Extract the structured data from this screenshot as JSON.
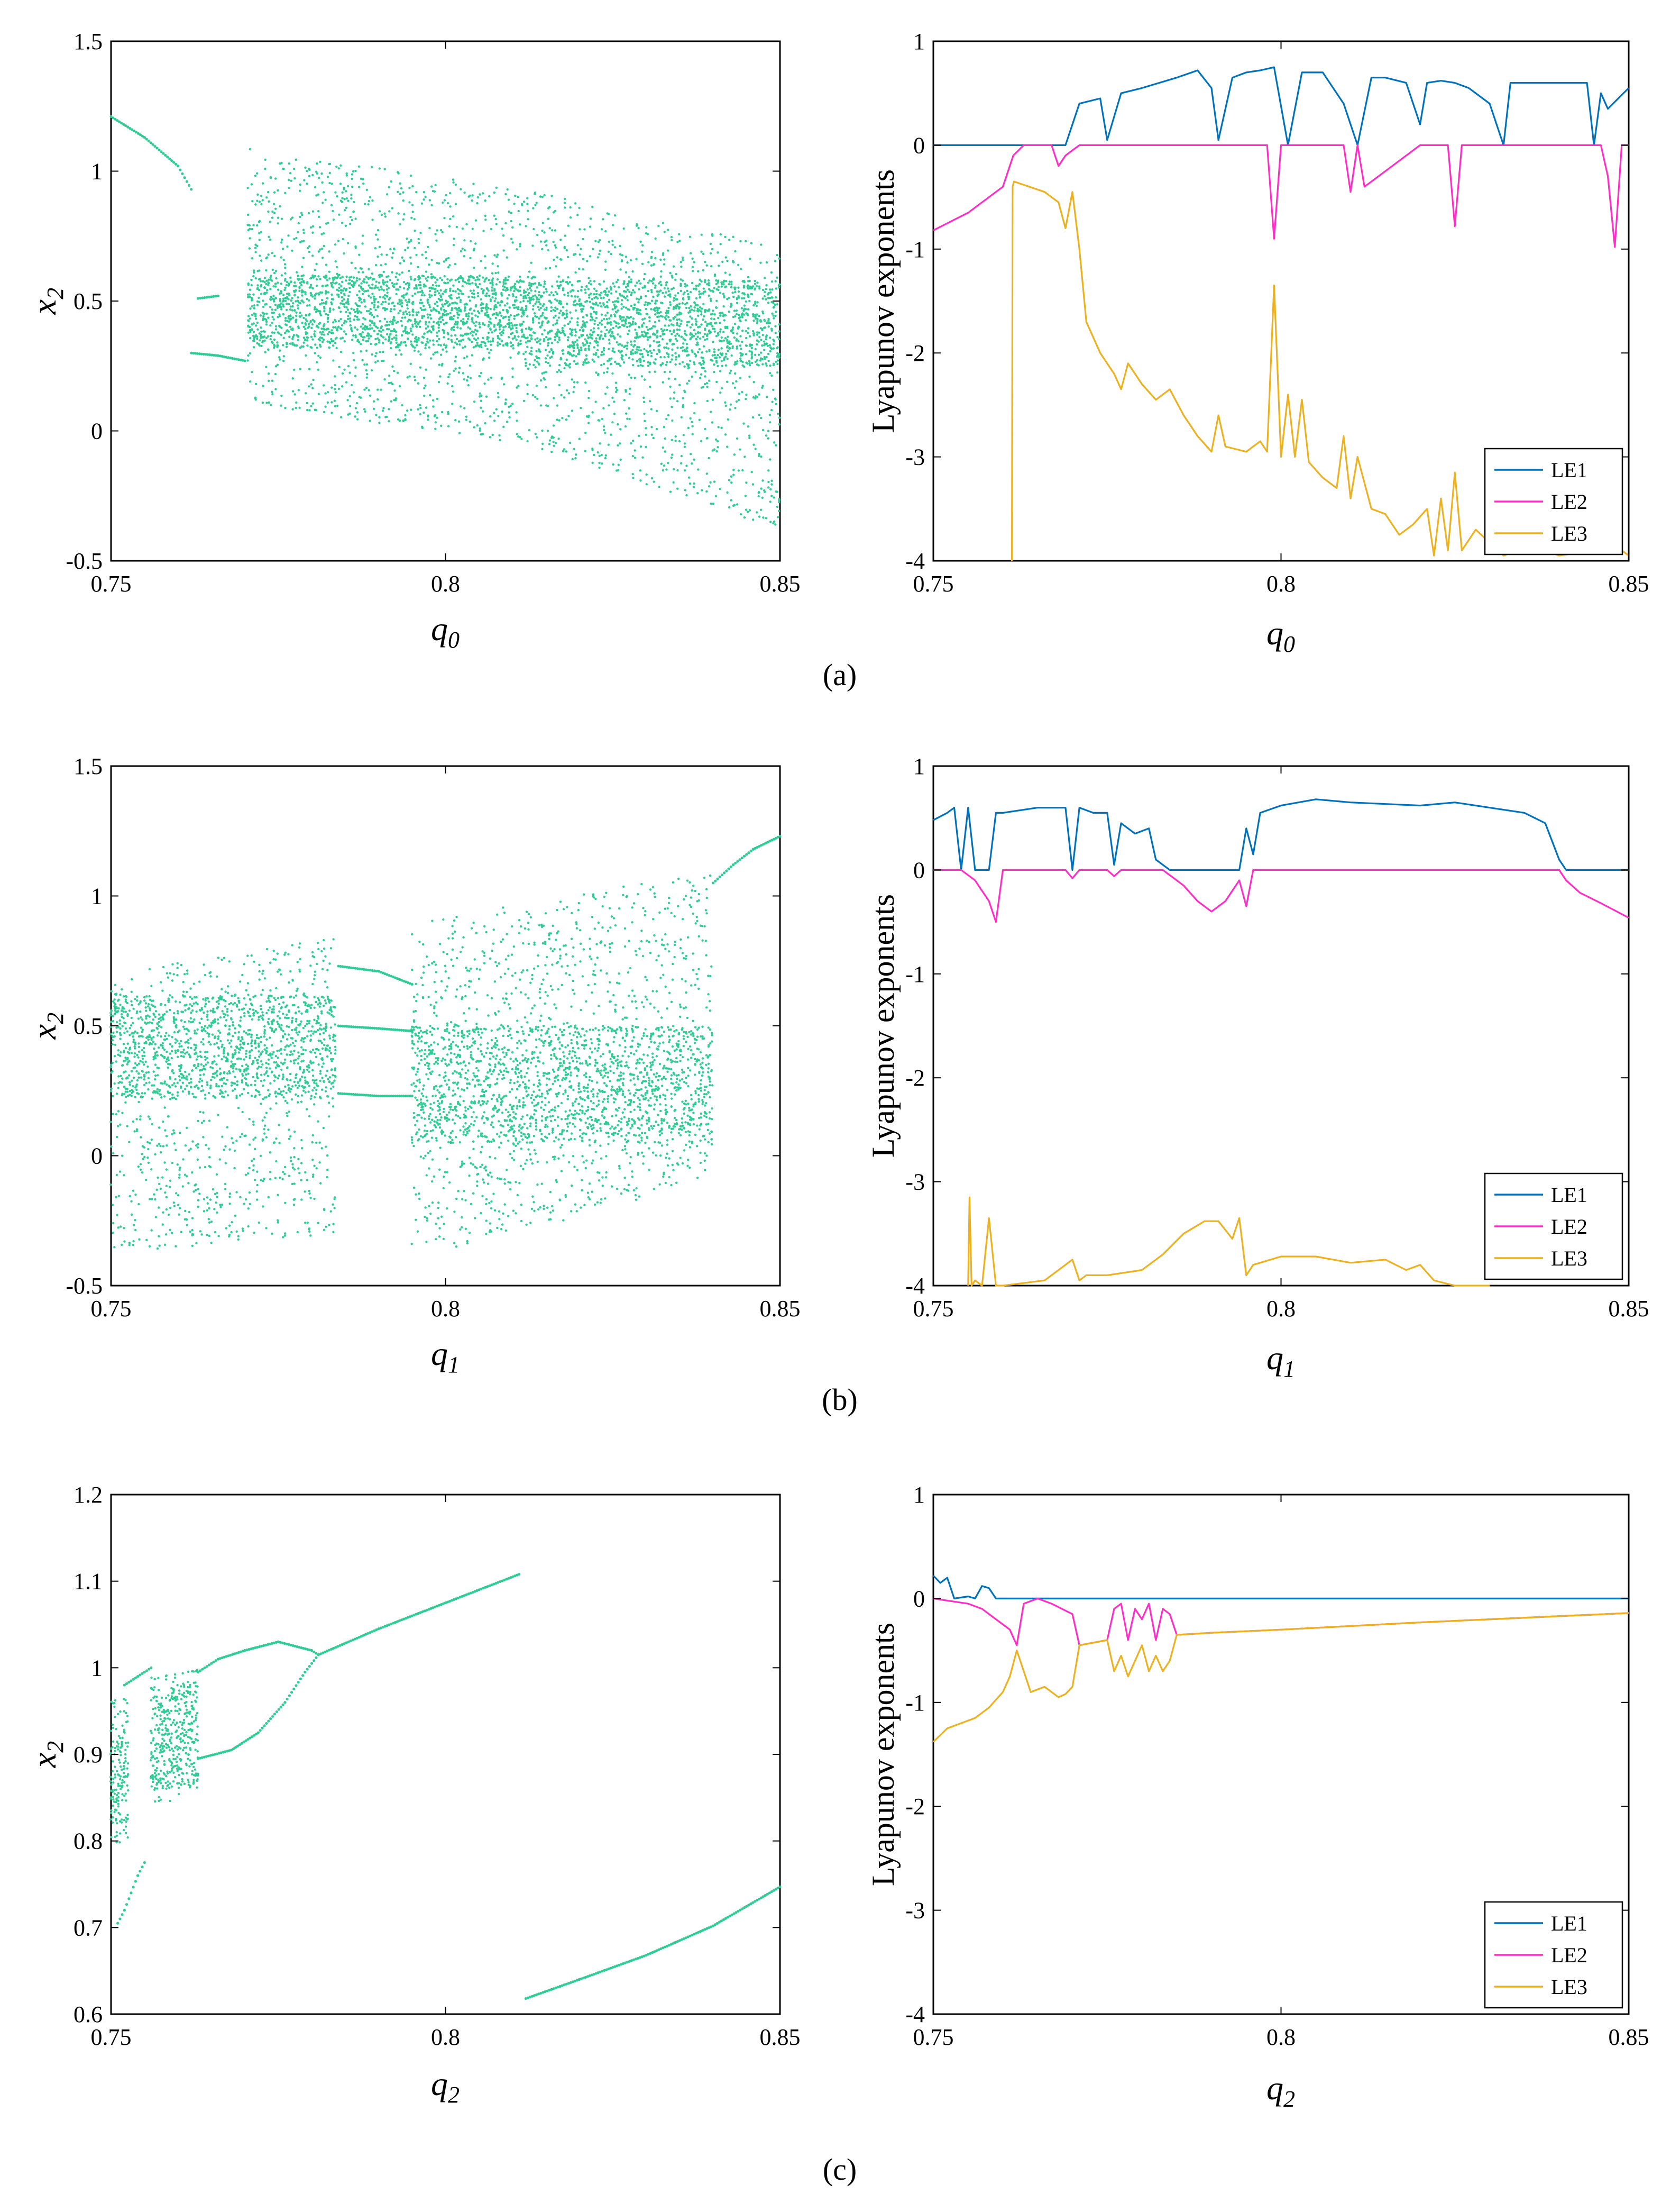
{
  "figure": {
    "panel_labels": [
      "(a)",
      "(b)",
      "(c)"
    ]
  },
  "chart_data": [
    {
      "id": "bif-q0",
      "type": "scatter",
      "xlabel": "q0",
      "ylabel": "x2",
      "xlim": [
        0.75,
        0.85
      ],
      "ylim": [
        -0.5,
        1.5
      ],
      "xticks": [
        "0.75",
        "0.8",
        "0.85"
      ],
      "yticks": [
        "-0.5",
        "0",
        "0.5",
        "1",
        "1.5"
      ],
      "color": "#2fcc95",
      "branches": [
        {
          "x": [
            0.75,
            0.755,
            0.76,
            0.762
          ],
          "y": [
            1.21,
            1.13,
            1.02,
            0.93
          ]
        },
        {
          "x": [
            0.763,
            0.766
          ],
          "y": [
            0.51,
            0.52
          ]
        },
        {
          "x": [
            0.762,
            0.766,
            0.77
          ],
          "y": [
            0.3,
            0.29,
            0.27
          ]
        }
      ],
      "bands": [
        {
          "x0": 0.7705,
          "x1": 0.812,
          "upper": [
            1.09,
            0.93
          ],
          "lower": [
            0.1,
            -0.05
          ],
          "dense": [
            0.32,
            0.6
          ]
        },
        {
          "x0": 0.812,
          "x1": 0.85,
          "upper": [
            0.93,
            0.71
          ],
          "lower": [
            -0.05,
            -0.38
          ],
          "dense": [
            0.25,
            0.58
          ]
        }
      ]
    },
    {
      "id": "le-q0",
      "type": "line",
      "xlabel": "q0",
      "ylabel": "Lyapunov exponents",
      "xlim": [
        0.75,
        0.85
      ],
      "ylim": [
        -4,
        1
      ],
      "xticks": [
        "0.75",
        "0.8",
        "0.85"
      ],
      "yticks": [
        "-4",
        "-3",
        "-2",
        "-1",
        "0",
        "1"
      ],
      "legend_position": "bottom-right",
      "series": [
        {
          "name": "LE1",
          "color": "#0072bd",
          "x": [
            0.75,
            0.769,
            0.771,
            0.774,
            0.775,
            0.777,
            0.78,
            0.785,
            0.788,
            0.79,
            0.791,
            0.793,
            0.795,
            0.797,
            0.799,
            0.801,
            0.803,
            0.806,
            0.809,
            0.811,
            0.813,
            0.815,
            0.818,
            0.82,
            0.821,
            0.823,
            0.825,
            0.827,
            0.83,
            0.832,
            0.833,
            0.835,
            0.838,
            0.841,
            0.844,
            0.845,
            0.846,
            0.847,
            0.85
          ],
          "y": [
            0.0,
            0.0,
            0.4,
            0.45,
            0.05,
            0.5,
            0.55,
            0.65,
            0.72,
            0.55,
            0.05,
            0.65,
            0.7,
            0.72,
            0.75,
            0.0,
            0.7,
            0.7,
            0.4,
            0.0,
            0.65,
            0.65,
            0.6,
            0.2,
            0.6,
            0.62,
            0.6,
            0.55,
            0.4,
            0.0,
            0.6,
            0.6,
            0.6,
            0.6,
            0.6,
            0.0,
            0.5,
            0.35,
            0.55
          ]
        },
        {
          "name": "LE2",
          "color": "#ff2ec7",
          "x": [
            0.75,
            0.755,
            0.76,
            0.7615,
            0.763,
            0.767,
            0.768,
            0.769,
            0.77,
            0.771,
            0.775,
            0.785,
            0.798,
            0.799,
            0.8,
            0.809,
            0.81,
            0.811,
            0.812,
            0.82,
            0.824,
            0.825,
            0.826,
            0.846,
            0.847,
            0.848,
            0.849,
            0.85
          ],
          "y": [
            -0.82,
            -0.65,
            -0.4,
            -0.1,
            0.0,
            0.0,
            -0.2,
            -0.1,
            -0.05,
            0.0,
            0.0,
            0.0,
            0.0,
            -0.9,
            0.0,
            0.0,
            -0.45,
            0.0,
            -0.4,
            0.0,
            0.0,
            -0.78,
            0.0,
            0.0,
            -0.3,
            -0.98,
            0.0,
            0.0
          ]
        },
        {
          "name": "LE3",
          "color": "#edb120",
          "x": [
            0.7613,
            0.7614,
            0.7616,
            0.766,
            0.768,
            0.769,
            0.77,
            0.771,
            0.772,
            0.774,
            0.776,
            0.777,
            0.778,
            0.78,
            0.782,
            0.784,
            0.786,
            0.788,
            0.79,
            0.791,
            0.792,
            0.795,
            0.797,
            0.798,
            0.799,
            0.8,
            0.801,
            0.802,
            0.803,
            0.804,
            0.806,
            0.808,
            0.809,
            0.81,
            0.811,
            0.813,
            0.815,
            0.817,
            0.819,
            0.821,
            0.822,
            0.823,
            0.824,
            0.825,
            0.826,
            0.828,
            0.832,
            0.836,
            0.84,
            0.845,
            0.848,
            0.85
          ],
          "y": [
            -4.0,
            -0.4,
            -0.35,
            -0.45,
            -0.55,
            -0.8,
            -0.45,
            -1.0,
            -1.7,
            -2.0,
            -2.2,
            -2.35,
            -2.1,
            -2.3,
            -2.45,
            -2.35,
            -2.6,
            -2.8,
            -2.95,
            -2.6,
            -2.9,
            -2.95,
            -2.85,
            -2.95,
            -1.35,
            -3.0,
            -2.4,
            -3.0,
            -2.45,
            -3.05,
            -3.2,
            -3.3,
            -2.8,
            -3.4,
            -3.0,
            -3.5,
            -3.55,
            -3.75,
            -3.65,
            -3.5,
            -3.95,
            -3.4,
            -3.9,
            -3.15,
            -3.9,
            -3.7,
            -3.95,
            -3.85,
            -3.95,
            -3.9,
            -3.85,
            -3.95
          ]
        }
      ]
    },
    {
      "id": "bif-q1",
      "type": "scatter",
      "xlabel": "q1",
      "ylabel": "x2",
      "xlim": [
        0.75,
        0.85
      ],
      "ylim": [
        -0.5,
        1.5
      ],
      "xticks": [
        "0.75",
        "0.8",
        "0.85"
      ],
      "yticks": [
        "-0.5",
        "0",
        "0.5",
        "1",
        "1.5"
      ],
      "color": "#2fcc95",
      "branches": [
        {
          "x": [
            0.784,
            0.79,
            0.795
          ],
          "y": [
            0.73,
            0.71,
            0.66
          ]
        },
        {
          "x": [
            0.784,
            0.79,
            0.795
          ],
          "y": [
            0.5,
            0.49,
            0.48
          ]
        },
        {
          "x": [
            0.784,
            0.79,
            0.795
          ],
          "y": [
            0.24,
            0.23,
            0.23
          ]
        },
        {
          "x": [
            0.84,
            0.843,
            0.846,
            0.85
          ],
          "y": [
            1.05,
            1.12,
            1.18,
            1.23
          ]
        }
      ],
      "bands": [
        {
          "x0": 0.75,
          "x1": 0.7835,
          "upper": [
            0.7,
            0.84
          ],
          "lower": [
            -0.38,
            -0.3
          ],
          "dense": [
            0.22,
            0.62
          ]
        },
        {
          "x0": 0.795,
          "x1": 0.84,
          "upper": [
            0.9,
            1.1
          ],
          "lower": [
            -0.4,
            -0.1
          ],
          "dense": [
            0.05,
            0.5
          ]
        }
      ]
    },
    {
      "id": "le-q1",
      "type": "line",
      "xlabel": "q1",
      "ylabel": "Lyapunov exponents",
      "xlim": [
        0.75,
        0.85
      ],
      "ylim": [
        -4,
        1
      ],
      "xticks": [
        "0.75",
        "0.8",
        "0.85"
      ],
      "yticks": [
        "-4",
        "-3",
        "-2",
        "-1",
        "0",
        "1"
      ],
      "legend_position": "bottom-right",
      "series": [
        {
          "name": "LE1",
          "color": "#0072bd",
          "x": [
            0.75,
            0.752,
            0.753,
            0.754,
            0.755,
            0.756,
            0.758,
            0.759,
            0.76,
            0.765,
            0.769,
            0.77,
            0.771,
            0.773,
            0.775,
            0.776,
            0.777,
            0.779,
            0.781,
            0.782,
            0.784,
            0.79,
            0.794,
            0.795,
            0.796,
            0.797,
            0.8,
            0.805,
            0.81,
            0.82,
            0.825,
            0.83,
            0.835,
            0.838,
            0.84,
            0.841,
            0.845,
            0.85
          ],
          "y": [
            0.48,
            0.55,
            0.6,
            0.0,
            0.6,
            0.0,
            0.0,
            0.55,
            0.55,
            0.6,
            0.6,
            0.0,
            0.6,
            0.55,
            0.55,
            0.05,
            0.45,
            0.35,
            0.4,
            0.1,
            0.0,
            0.0,
            0.0,
            0.4,
            0.15,
            0.55,
            0.62,
            0.68,
            0.65,
            0.62,
            0.65,
            0.6,
            0.55,
            0.45,
            0.1,
            0.0,
            0.0,
            0.0
          ]
        },
        {
          "name": "LE2",
          "color": "#ff2ec7",
          "x": [
            0.75,
            0.754,
            0.756,
            0.758,
            0.759,
            0.76,
            0.762,
            0.769,
            0.77,
            0.771,
            0.775,
            0.776,
            0.777,
            0.783,
            0.786,
            0.788,
            0.79,
            0.792,
            0.794,
            0.795,
            0.796,
            0.8,
            0.838,
            0.84,
            0.841,
            0.843,
            0.846,
            0.85
          ],
          "y": [
            0.0,
            0.0,
            -0.1,
            -0.3,
            -0.5,
            0.0,
            0.0,
            0.0,
            -0.08,
            0.0,
            0.0,
            -0.06,
            0.0,
            0.0,
            -0.15,
            -0.3,
            -0.4,
            -0.3,
            -0.1,
            -0.35,
            0.0,
            0.0,
            0.0,
            0.0,
            -0.1,
            -0.22,
            -0.32,
            -0.46
          ]
        },
        {
          "name": "LE3",
          "color": "#edb120",
          "x": [
            0.755,
            0.7552,
            0.7555,
            0.756,
            0.757,
            0.758,
            0.759,
            0.76,
            0.766,
            0.77,
            0.771,
            0.772,
            0.775,
            0.78,
            0.783,
            0.786,
            0.789,
            0.791,
            0.793,
            0.794,
            0.795,
            0.796,
            0.8,
            0.805,
            0.81,
            0.815,
            0.818,
            0.82,
            0.822,
            0.825,
            0.83
          ],
          "y": [
            -4.0,
            -3.15,
            -4.0,
            -3.95,
            -4.0,
            -3.35,
            -4.0,
            -4.0,
            -3.95,
            -3.75,
            -3.95,
            -3.9,
            -3.9,
            -3.85,
            -3.7,
            -3.5,
            -3.38,
            -3.38,
            -3.55,
            -3.35,
            -3.9,
            -3.8,
            -3.72,
            -3.72,
            -3.78,
            -3.75,
            -3.85,
            -3.8,
            -3.95,
            -4.0,
            -4.0
          ]
        }
      ]
    },
    {
      "id": "bif-q2",
      "type": "scatter",
      "xlabel": "q2",
      "ylabel": "x2",
      "xlim": [
        0.75,
        0.85
      ],
      "ylim": [
        0.6,
        1.2
      ],
      "xticks": [
        "0.75",
        "0.8",
        "0.85"
      ],
      "yticks": [
        "0.6",
        "0.7",
        "0.8",
        "0.9",
        "1",
        "1.1",
        "1.2"
      ],
      "color": "#2fcc95",
      "branches": [
        {
          "x": [
            0.763,
            0.766,
            0.77,
            0.775,
            0.78,
            0.781
          ],
          "y": [
            0.995,
            1.01,
            1.02,
            1.03,
            1.02,
            1.015
          ]
        },
        {
          "x": [
            0.763,
            0.768,
            0.772,
            0.776,
            0.779,
            0.781
          ],
          "y": [
            0.895,
            0.905,
            0.925,
            0.96,
            0.995,
            1.015
          ]
        },
        {
          "x": [
            0.781,
            0.79,
            0.8,
            0.811
          ],
          "y": [
            1.015,
            1.045,
            1.075,
            1.108
          ]
        },
        {
          "x": [
            0.812,
            0.82,
            0.83,
            0.84,
            0.85
          ],
          "y": [
            0.618,
            0.64,
            0.668,
            0.702,
            0.747
          ]
        },
        {
          "x": [
            0.751,
            0.752,
            0.753,
            0.754,
            0.755
          ],
          "y": [
            0.705,
            0.72,
            0.74,
            0.76,
            0.775
          ]
        },
        {
          "x": [
            0.752,
            0.754,
            0.756
          ],
          "y": [
            0.98,
            0.99,
            1.0
          ]
        }
      ],
      "bands": [
        {
          "x0": 0.75,
          "x1": 0.7525,
          "upper": [
            0.97,
            0.97
          ],
          "lower": [
            0.79,
            0.8
          ],
          "dense": [
            0.82,
            0.95
          ]
        },
        {
          "x0": 0.756,
          "x1": 0.763,
          "upper": [
            0.99,
            1.0
          ],
          "lower": [
            0.83,
            0.87
          ],
          "dense": [
            0.86,
            0.98
          ]
        }
      ]
    },
    {
      "id": "le-q2",
      "type": "line",
      "xlabel": "q2",
      "ylabel": "Lyapunov exponents",
      "xlim": [
        0.75,
        0.85
      ],
      "ylim": [
        -4,
        1
      ],
      "xticks": [
        "0.75",
        "0.8",
        "0.85"
      ],
      "yticks": [
        "-4",
        "-3",
        "-2",
        "-1",
        "0",
        "1"
      ],
      "legend_position": "bottom-right",
      "series": [
        {
          "name": "LE1",
          "color": "#0072bd",
          "x": [
            0.75,
            0.751,
            0.752,
            0.753,
            0.755,
            0.756,
            0.757,
            0.758,
            0.759,
            0.76,
            0.85
          ],
          "y": [
            0.22,
            0.15,
            0.2,
            0.0,
            0.02,
            0.0,
            0.12,
            0.1,
            0.0,
            0.0,
            0.0
          ]
        },
        {
          "name": "LE2",
          "color": "#ff2ec7",
          "x": [
            0.75,
            0.755,
            0.757,
            0.759,
            0.761,
            0.762,
            0.763,
            0.765,
            0.767,
            0.77,
            0.771,
            0.775,
            0.776,
            0.777,
            0.778,
            0.779,
            0.78,
            0.781,
            0.782,
            0.783,
            0.784,
            0.785,
            0.79,
            0.8,
            0.82,
            0.85
          ],
          "y": [
            0.0,
            -0.05,
            -0.1,
            -0.2,
            -0.3,
            -0.45,
            -0.05,
            0.0,
            -0.05,
            -0.15,
            -0.45,
            -0.4,
            -0.1,
            -0.05,
            -0.4,
            -0.1,
            -0.2,
            -0.05,
            -0.4,
            -0.1,
            -0.15,
            -0.35,
            -0.33,
            -0.3,
            -0.23,
            -0.14
          ]
        },
        {
          "name": "LE3",
          "color": "#edb120",
          "x": [
            0.75,
            0.752,
            0.754,
            0.756,
            0.758,
            0.76,
            0.761,
            0.762,
            0.763,
            0.764,
            0.766,
            0.768,
            0.769,
            0.77,
            0.771,
            0.775,
            0.776,
            0.777,
            0.778,
            0.779,
            0.78,
            0.781,
            0.782,
            0.783,
            0.784,
            0.785,
            0.79,
            0.8,
            0.82,
            0.85
          ],
          "y": [
            -1.38,
            -1.25,
            -1.2,
            -1.15,
            -1.05,
            -0.9,
            -0.75,
            -0.5,
            -0.7,
            -0.9,
            -0.85,
            -0.95,
            -0.92,
            -0.85,
            -0.45,
            -0.4,
            -0.7,
            -0.55,
            -0.75,
            -0.6,
            -0.45,
            -0.7,
            -0.55,
            -0.7,
            -0.6,
            -0.35,
            -0.33,
            -0.3,
            -0.23,
            -0.14
          ]
        }
      ]
    }
  ]
}
